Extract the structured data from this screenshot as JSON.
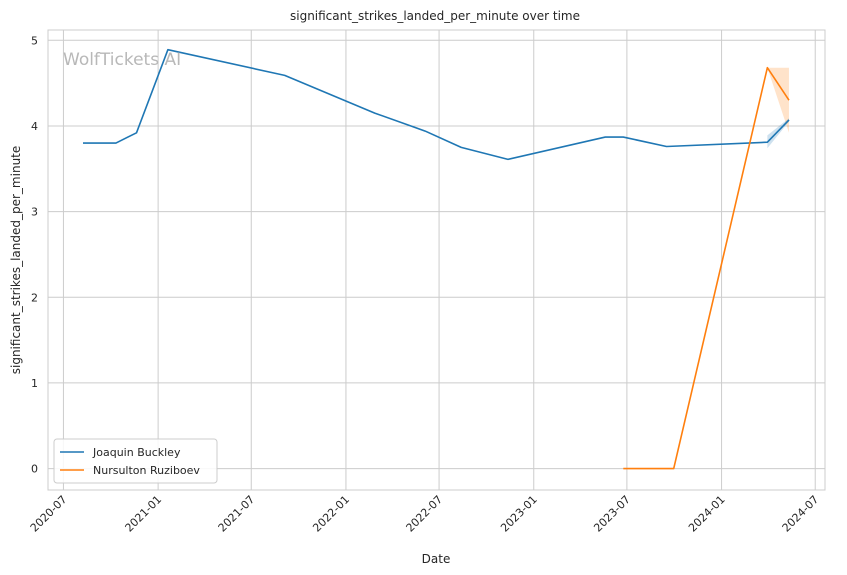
{
  "chart_data": {
    "type": "line",
    "title": "significant_strikes_landed_per_minute over time",
    "xlabel": "Date",
    "ylabel": "significant_strikes_landed_per_minute",
    "watermark": "WolfTickets AI",
    "x_ticks": [
      "2020-07",
      "2021-01",
      "2021-07",
      "2022-01",
      "2022-07",
      "2023-01",
      "2023-07",
      "2024-01",
      "2024-07"
    ],
    "y_ticks": [
      0,
      1,
      2,
      3,
      4,
      5
    ],
    "xlim": [
      "2020-06-01",
      "2024-07-20"
    ],
    "ylim": [
      -0.25,
      5.12
    ],
    "grid": true,
    "legend_position": "lower-left",
    "series": [
      {
        "name": "Joaquin Buckley",
        "color": "#1f77b4",
        "points": [
          {
            "x": "2020-08-08",
            "y": 3.8
          },
          {
            "x": "2020-10-11",
            "y": 3.8
          },
          {
            "x": "2020-11-20",
            "y": 3.92
          },
          {
            "x": "2021-01-20",
            "y": 4.89
          },
          {
            "x": "2021-09-04",
            "y": 4.59
          },
          {
            "x": "2022-02-26",
            "y": 4.15
          },
          {
            "x": "2022-06-04",
            "y": 3.94
          },
          {
            "x": "2022-08-13",
            "y": 3.75
          },
          {
            "x": "2022-11-12",
            "y": 3.61
          },
          {
            "x": "2023-05-20",
            "y": 3.87
          },
          {
            "x": "2023-06-24",
            "y": 3.87
          },
          {
            "x": "2023-09-16",
            "y": 3.76
          },
          {
            "x": "2024-03-30",
            "y": 3.81
          },
          {
            "x": "2024-05-11",
            "y": 4.07
          }
        ],
        "band": [
          {
            "x": "2024-03-30",
            "low": 3.74,
            "high": 3.89
          },
          {
            "x": "2024-05-11",
            "low": 4.05,
            "high": 4.09
          }
        ]
      },
      {
        "name": "Nursulton Ruziboev",
        "color": "#ff7f0e",
        "points": [
          {
            "x": "2023-06-24",
            "y": 0.0
          },
          {
            "x": "2023-09-30",
            "y": 0.0
          },
          {
            "x": "2024-03-30",
            "y": 4.68
          },
          {
            "x": "2024-05-11",
            "y": 4.3
          }
        ],
        "band": [
          {
            "x": "2024-03-30",
            "low": 4.68,
            "high": 4.68
          },
          {
            "x": "2024-05-11",
            "low": 3.92,
            "high": 4.68
          }
        ]
      }
    ]
  }
}
